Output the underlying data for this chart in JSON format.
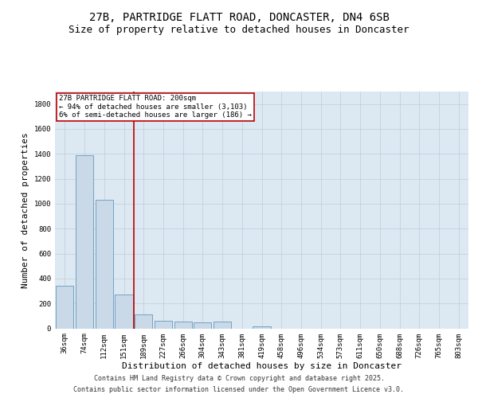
{
  "title_line1": "27B, PARTRIDGE FLATT ROAD, DONCASTER, DN4 6SB",
  "title_line2": "Size of property relative to detached houses in Doncaster",
  "xlabel": "Distribution of detached houses by size in Doncaster",
  "ylabel": "Number of detached properties",
  "categories": [
    "36sqm",
    "74sqm",
    "112sqm",
    "151sqm",
    "189sqm",
    "227sqm",
    "266sqm",
    "304sqm",
    "343sqm",
    "381sqm",
    "419sqm",
    "458sqm",
    "496sqm",
    "534sqm",
    "573sqm",
    "611sqm",
    "650sqm",
    "688sqm",
    "726sqm",
    "765sqm",
    "803sqm"
  ],
  "values": [
    340,
    1390,
    1030,
    270,
    110,
    60,
    55,
    50,
    55,
    0,
    15,
    0,
    0,
    0,
    0,
    0,
    0,
    0,
    0,
    0,
    0
  ],
  "bar_color": "#c9d9e8",
  "bar_edge_color": "#6699bb",
  "grid_color": "#c0ccd8",
  "bg_color": "#dce8f2",
  "annotation_box_color": "#bb0000",
  "annotation_text": "27B PARTRIDGE FLATT ROAD: 200sqm\n← 94% of detached houses are smaller (3,103)\n6% of semi-detached houses are larger (186) →",
  "vline_color": "#bb0000",
  "vline_x": 3.5,
  "ylim": [
    0,
    1900
  ],
  "yticks": [
    0,
    200,
    400,
    600,
    800,
    1000,
    1200,
    1400,
    1600,
    1800
  ],
  "footer_line1": "Contains HM Land Registry data © Crown copyright and database right 2025.",
  "footer_line2": "Contains public sector information licensed under the Open Government Licence v3.0.",
  "title_fontsize": 10,
  "subtitle_fontsize": 9,
  "tick_fontsize": 6.5,
  "label_fontsize": 8,
  "annot_fontsize": 6.5,
  "footer_fontsize": 6
}
